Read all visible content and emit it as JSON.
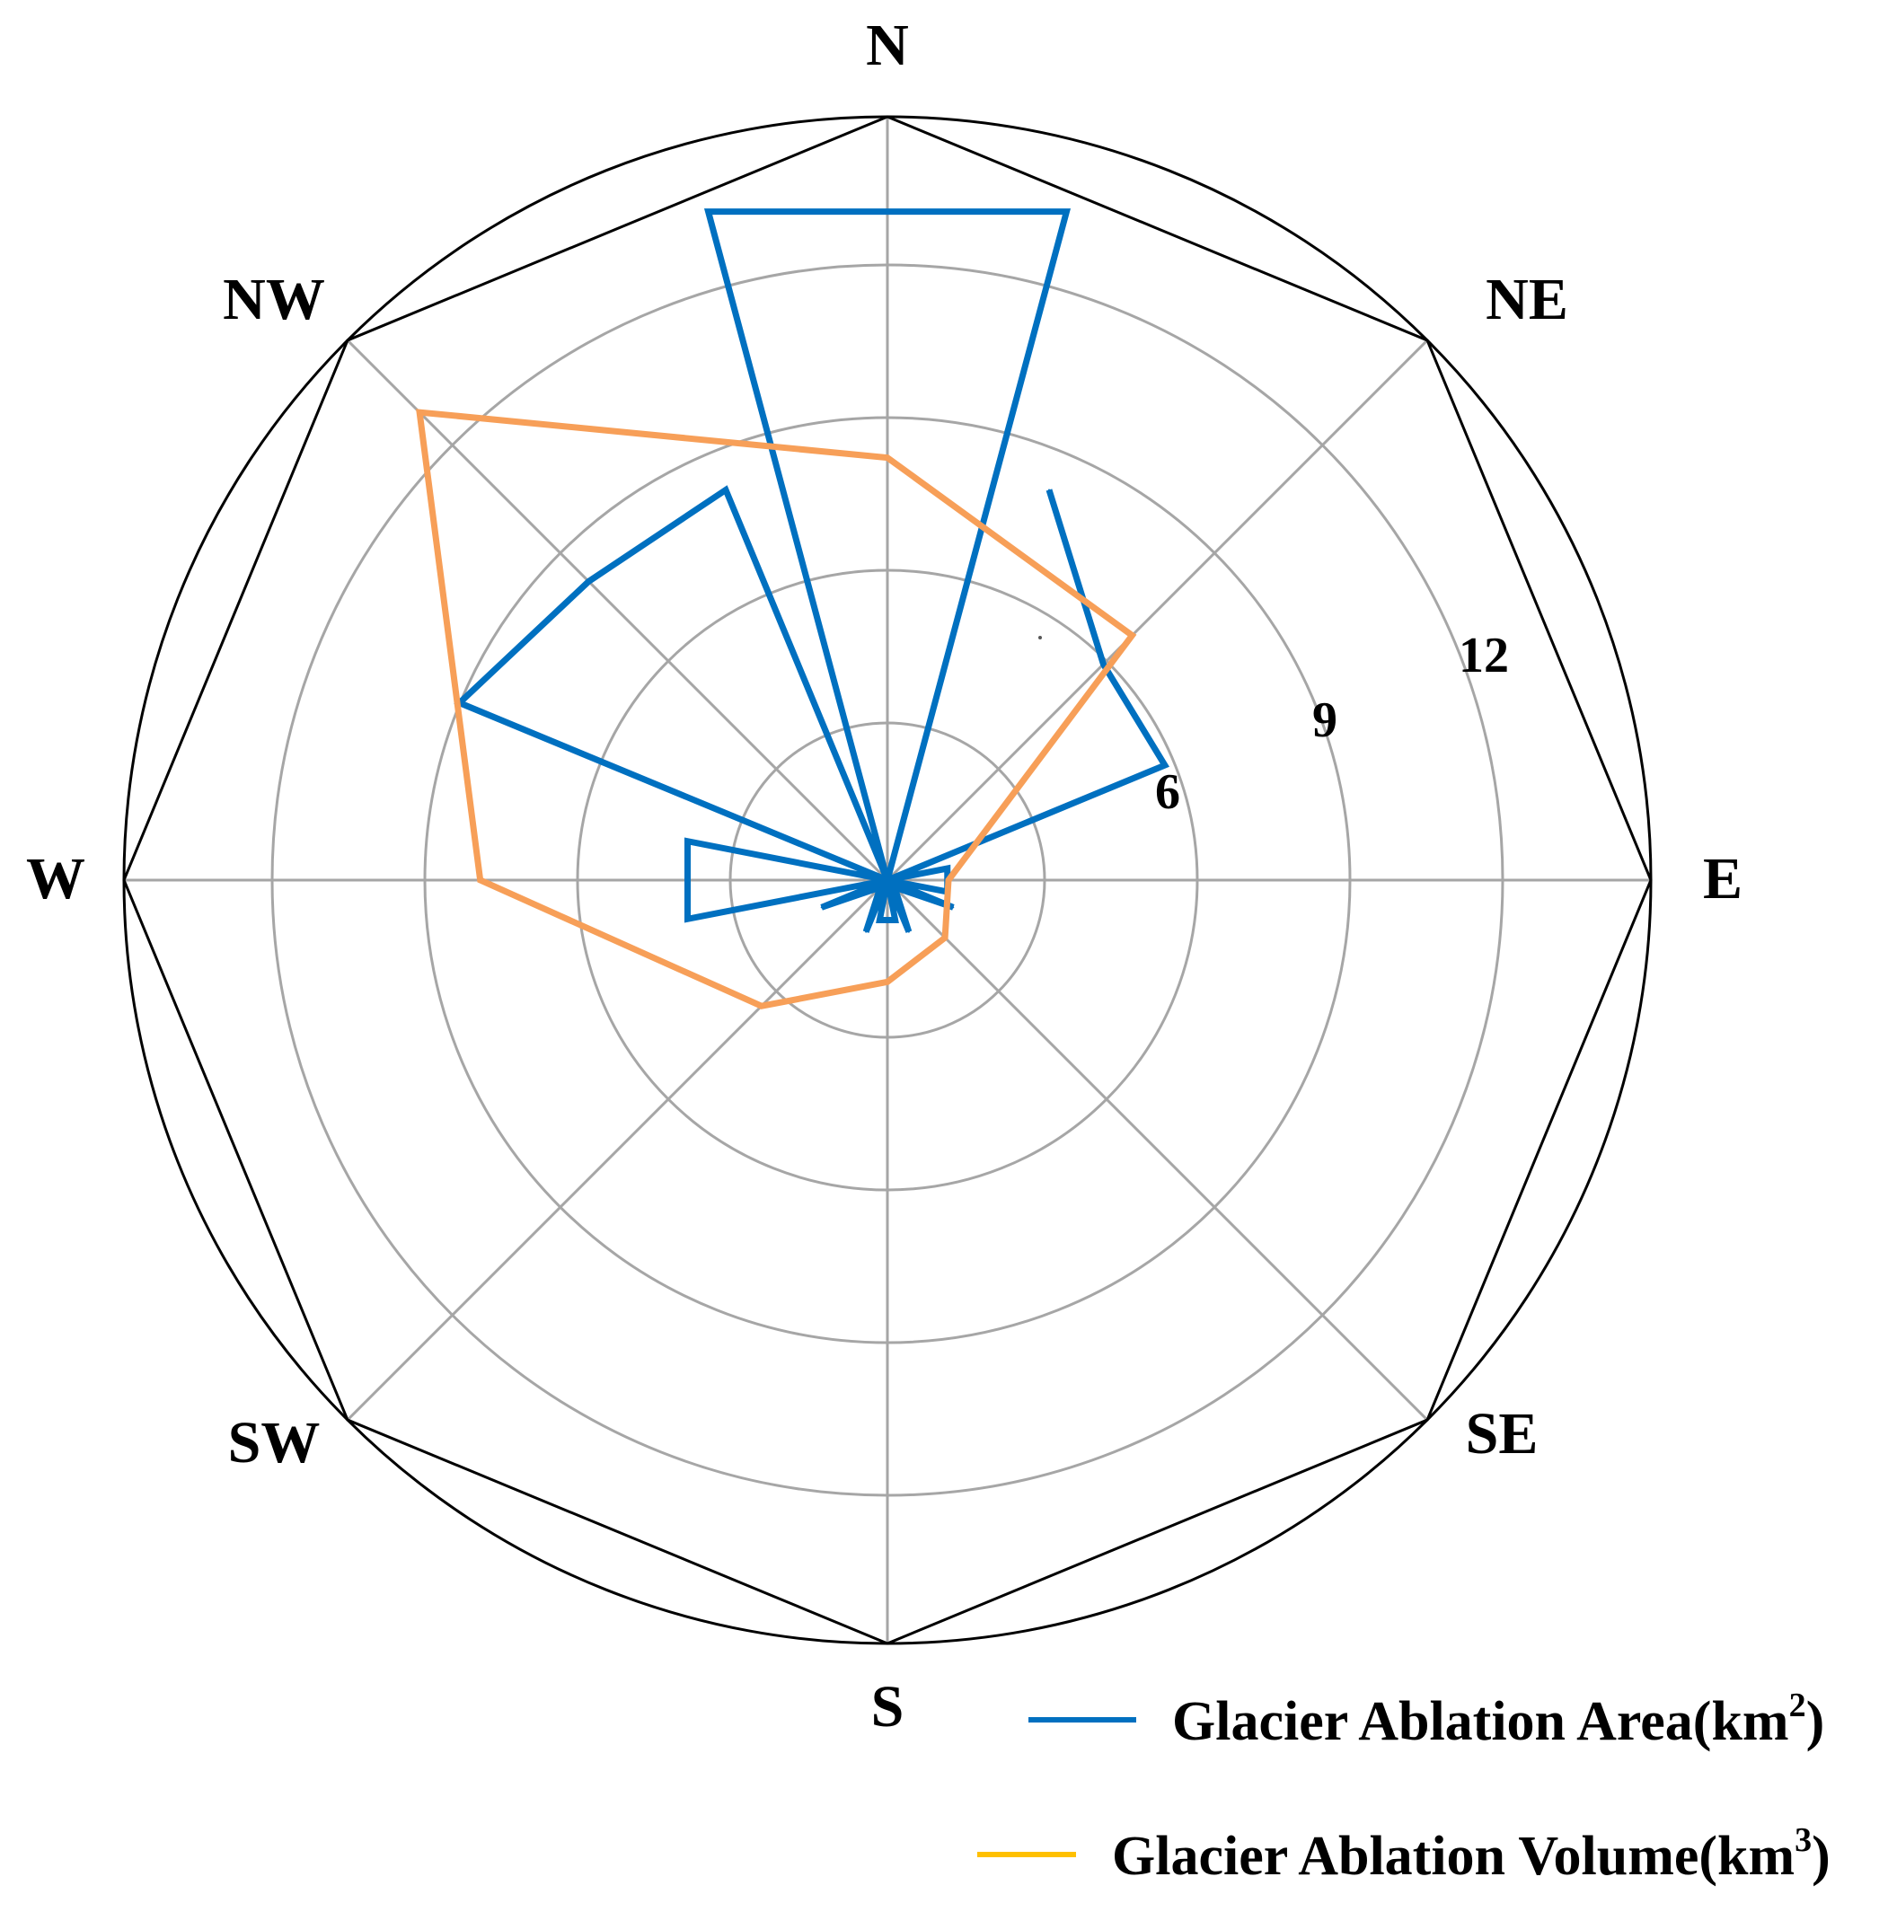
{
  "chart_data": {
    "type": "radar",
    "directions": [
      "N",
      "NE",
      "E",
      "SE",
      "S",
      "SW",
      "W",
      "NW"
    ],
    "radial_ticks": [
      6,
      9,
      12
    ],
    "radial_range": [
      2,
      17
    ],
    "grid": true,
    "legend_placement": "bottom-right",
    "series": [
      {
        "name_parts": [
          "Glacier Ablation Area(km",
          "2",
          ")"
        ],
        "color": "#0070C0",
        "points": [
          {
            "dir": "N",
            "angle": -15,
            "r": 15.6
          },
          {
            "dir": "N",
            "angle": 15,
            "r": 15.6
          },
          {
            "dir": "NNE",
            "angle": 22.5,
            "r": 10.3
          },
          {
            "dir": "NE",
            "angle": 45,
            "r": 8.0
          },
          {
            "dir": "ENE",
            "angle": 67.5,
            "r": 7.9
          },
          {
            "dir": "E",
            "angle": 79,
            "r": 3.2
          },
          {
            "dir": "E",
            "angle": 101,
            "r": 3.2
          },
          {
            "dir": "ESE",
            "angle": 112.5,
            "r": 3.4
          },
          {
            "dir": "SE",
            "angle": 135,
            "r": 2.2
          },
          {
            "dir": "SSE",
            "angle": 157.5,
            "r": 3.1
          },
          {
            "dir": "S",
            "angle": 169,
            "r": 2.8
          },
          {
            "dir": "S",
            "angle": 191,
            "r": 2.8
          },
          {
            "dir": "SSW",
            "angle": 202.5,
            "r": 3.1
          },
          {
            "dir": "SW",
            "angle": 225,
            "r": 2.2
          },
          {
            "dir": "WSW",
            "angle": 247.5,
            "r": 3.4
          },
          {
            "dir": "W",
            "angle": 259,
            "r": 6.0
          },
          {
            "dir": "W",
            "angle": 281,
            "r": 6.0
          },
          {
            "dir": "WNW",
            "angle": 292.5,
            "r": 11.1
          },
          {
            "dir": "NW",
            "angle": 315,
            "r": 10.3
          },
          {
            "dir": "NNW",
            "angle": 337.5,
            "r": 10.3
          }
        ]
      },
      {
        "name_parts": [
          "Glacier Ablation Volume(km",
          "3",
          ")"
        ],
        "color": "#F79F58",
        "legend_color": "#FFC000",
        "points": [
          {
            "dir": "N",
            "angle": 0,
            "r": 10.3
          },
          {
            "dir": "NE",
            "angle": 45,
            "r": 8.8
          },
          {
            "dir": "E",
            "angle": 90,
            "r": 3.2
          },
          {
            "dir": "SE",
            "angle": 135,
            "r": 3.6
          },
          {
            "dir": "S",
            "angle": 180,
            "r": 4.0
          },
          {
            "dir": "SW",
            "angle": 225,
            "r": 5.5
          },
          {
            "dir": "W",
            "angle": 270,
            "r": 10.0
          },
          {
            "dir": "NW",
            "angle": 315,
            "r": 15.0
          }
        ]
      }
    ]
  }
}
